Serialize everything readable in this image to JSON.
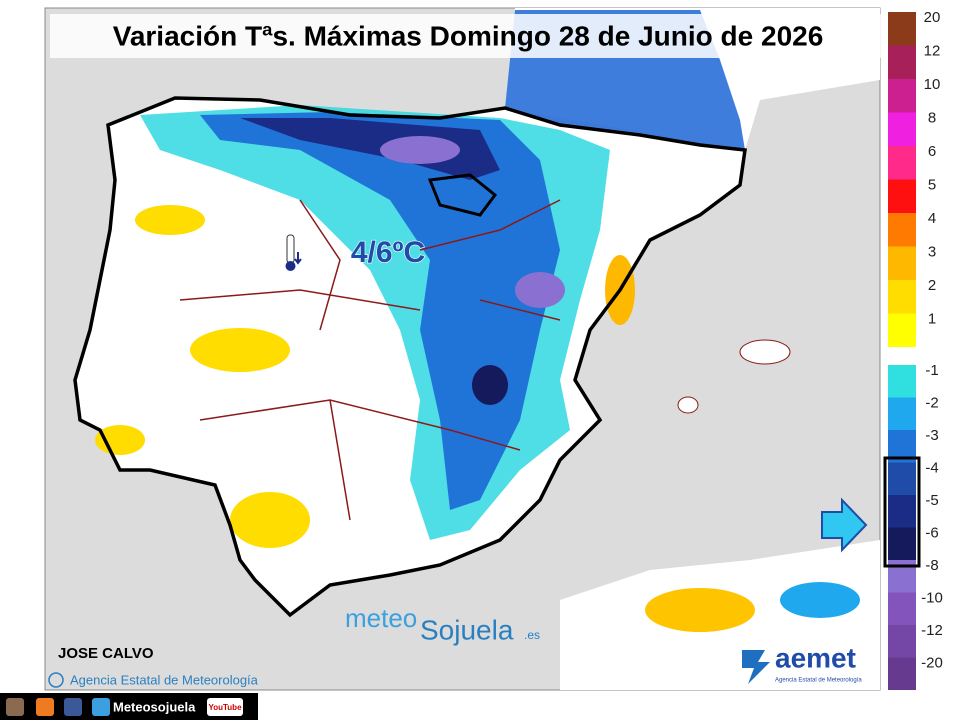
{
  "title": "Variación Tªs. Máximas Domingo 28 de Junio de 2026",
  "annotation": "4/6ºC",
  "author": "JOSE CALVO",
  "copyright": "Agencia Estatal de Meteorología",
  "watermark": {
    "part1": "meteo",
    "part2": "Sojuela",
    "part3": ".es"
  },
  "logo": {
    "name": "aemet",
    "subtitle": "Agencia Estatal de Meteorología"
  },
  "footer": {
    "handle": "Meteosojuela",
    "youtube": "YouTube"
  },
  "legend": {
    "positive": [
      {
        "value": 20,
        "color": "#8b3a1a"
      },
      {
        "value": 12,
        "color": "#a8205a"
      },
      {
        "value": 10,
        "color": "#cc2090"
      },
      {
        "value": 8,
        "color": "#f020e0"
      },
      {
        "value": 6,
        "color": "#ff2a8a"
      },
      {
        "value": 5,
        "color": "#ff1010"
      },
      {
        "value": 4,
        "color": "#ff7a00"
      },
      {
        "value": 3,
        "color": "#ffb800"
      },
      {
        "value": 2,
        "color": "#ffdd00"
      },
      {
        "value": 1,
        "color": "#ffff00"
      }
    ],
    "negative": [
      {
        "value": -1,
        "color": "#30e0e0"
      },
      {
        "value": -2,
        "color": "#20a8ee"
      },
      {
        "value": -3,
        "color": "#2074d8"
      },
      {
        "value": -4,
        "color": "#1f4ca8"
      },
      {
        "value": -5,
        "color": "#1a2c86"
      },
      {
        "value": -6,
        "color": "#151a5c"
      },
      {
        "value": -8,
        "color": "#8a70d0"
      },
      {
        "value": -10,
        "color": "#8254bc"
      },
      {
        "value": -12,
        "color": "#7446a6"
      },
      {
        "value": -20,
        "color": "#663a8e"
      }
    ]
  }
}
